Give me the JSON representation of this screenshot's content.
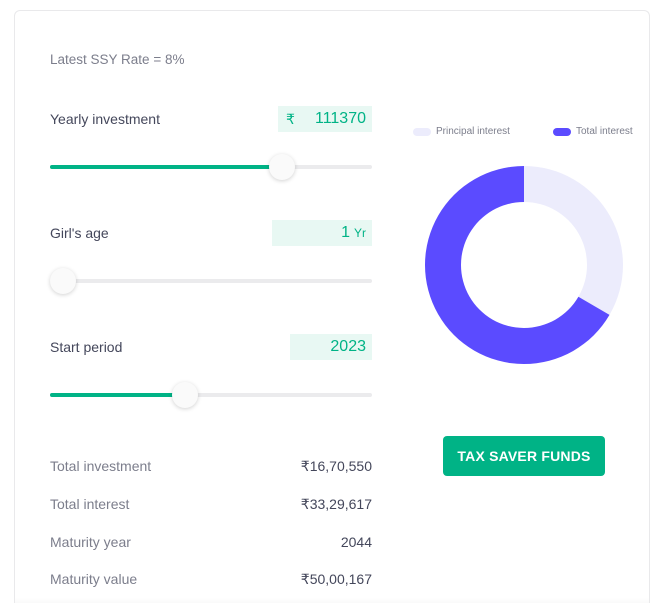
{
  "rate_text": "Latest SSY Rate = 8%",
  "inputs": [
    {
      "label": "Yearly investment",
      "currency": "₹",
      "value": "111370",
      "unit": "",
      "slider_pct": 72
    },
    {
      "label": "Girl's age",
      "currency": "",
      "value": "1",
      "unit": "Yr",
      "slider_pct": 4
    },
    {
      "label": "Start period",
      "currency": "",
      "value": "2023",
      "unit": "",
      "slider_pct": 42
    }
  ],
  "results": [
    {
      "label": "Total investment",
      "value": "₹16,70,550"
    },
    {
      "label": "Total interest",
      "value": "₹33,29,617"
    },
    {
      "label": "Maturity year",
      "value": "2044"
    },
    {
      "label": "Maturity value",
      "value": "₹50,00,167"
    }
  ],
  "legend": {
    "principal_label": "Principal interest",
    "total_label": "Total interest",
    "principal_color": "#ececfc",
    "total_color": "#5b4bff"
  },
  "button": {
    "label": "TAX SAVER FUNDS",
    "color": "#00b386"
  },
  "chart_data": {
    "type": "pie",
    "variant": "donut",
    "categories": [
      "Principal interest",
      "Total interest"
    ],
    "values": [
      1670550,
      3329617
    ],
    "colors": [
      "#ececfc",
      "#5b4bff"
    ],
    "legend_position": "top"
  }
}
